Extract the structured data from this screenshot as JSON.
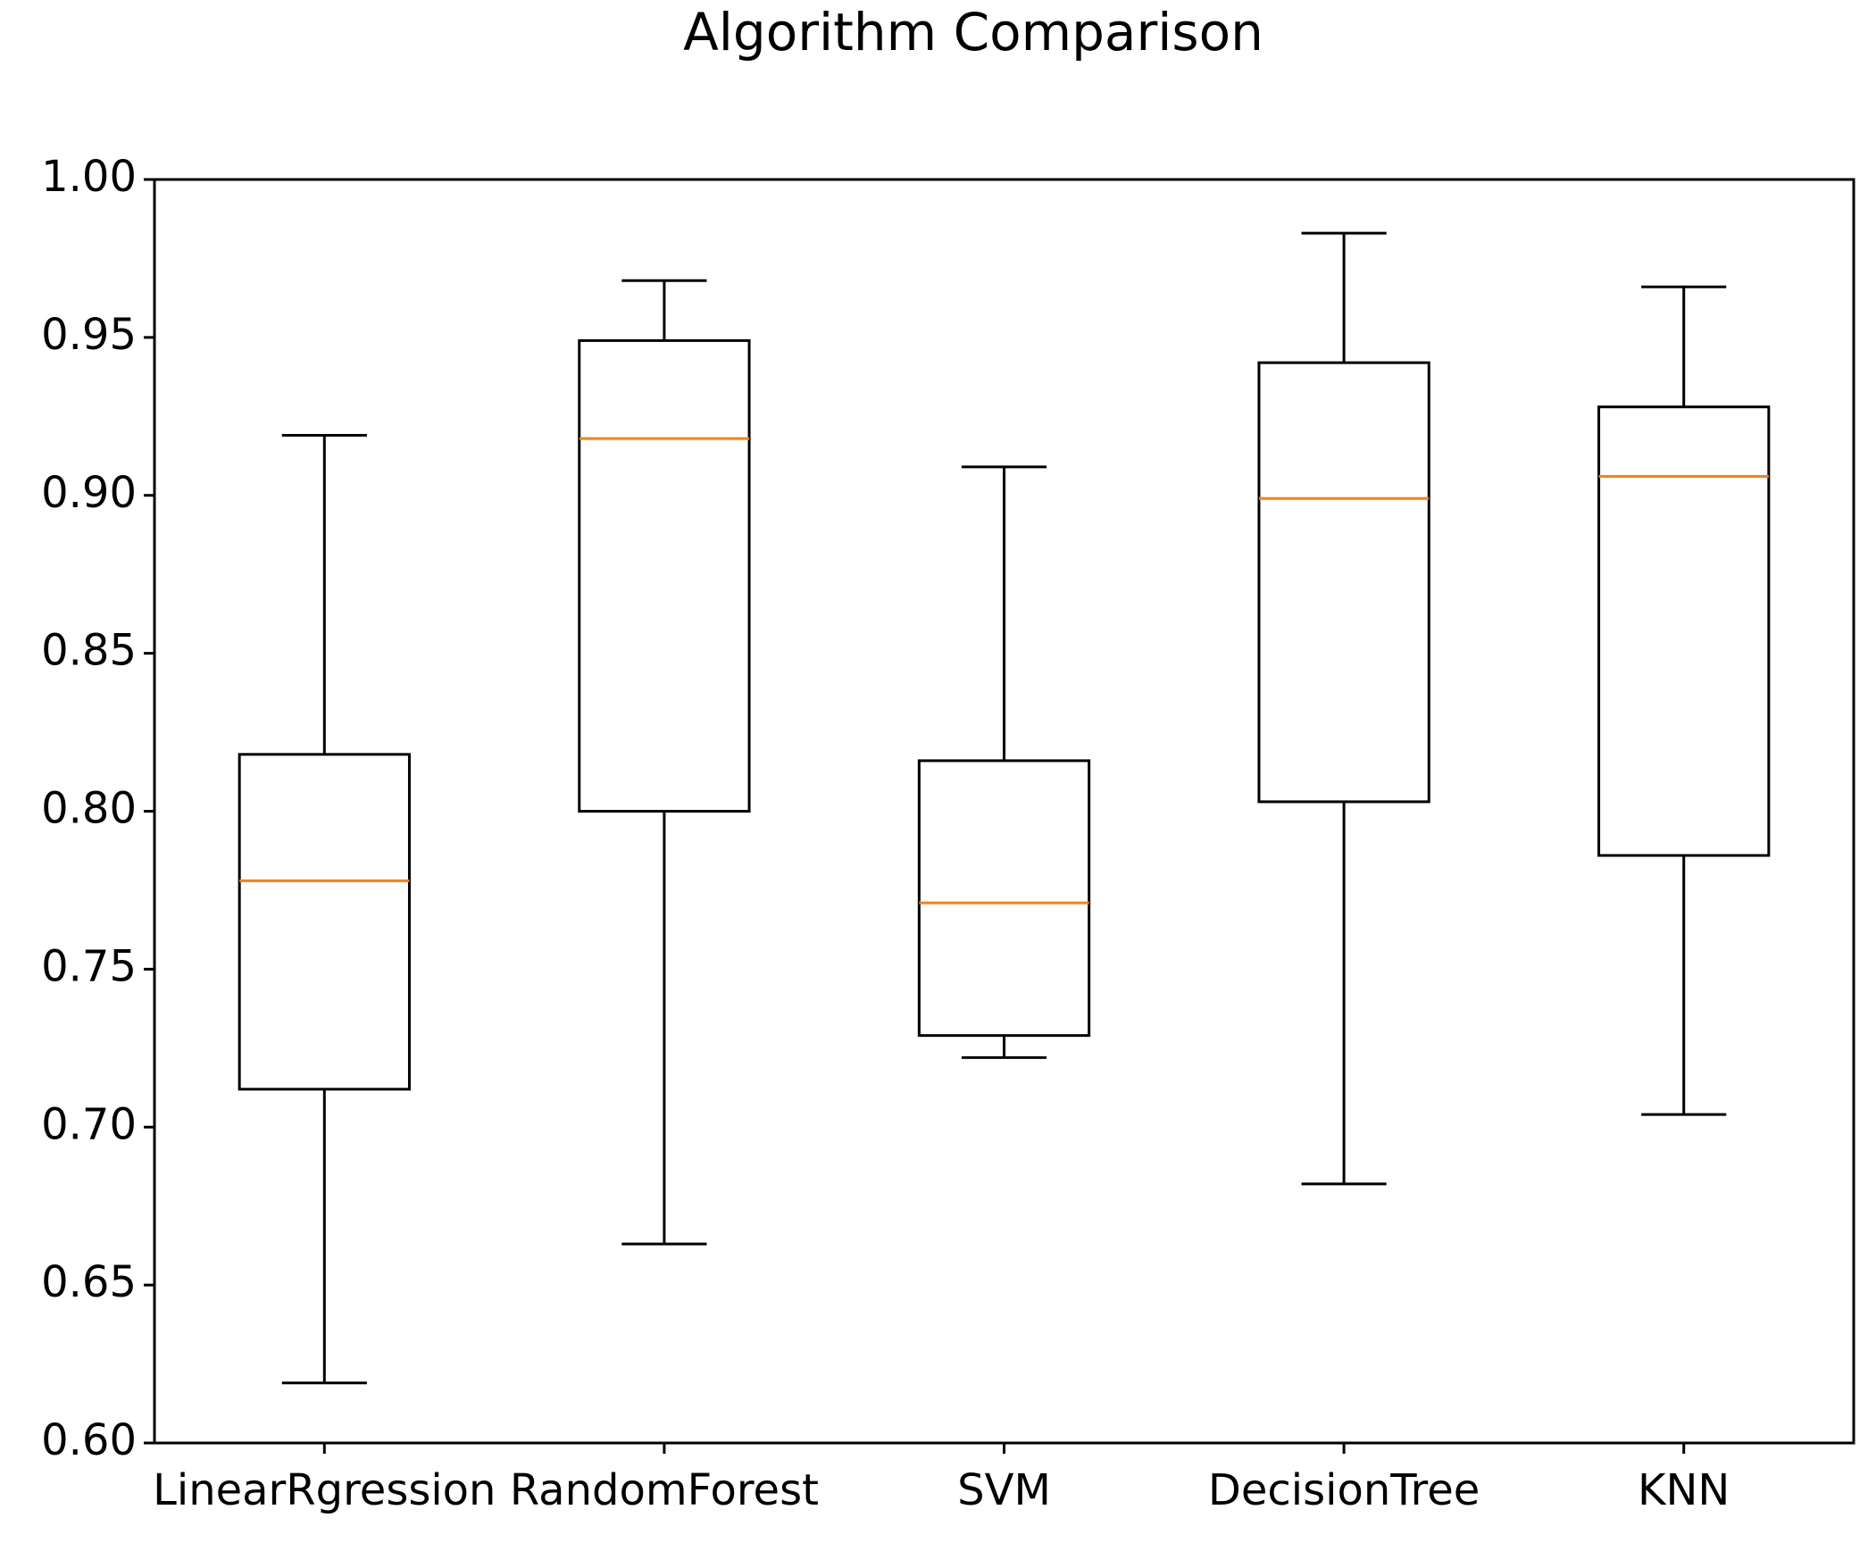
{
  "chart_data": {
    "type": "box",
    "title": "Algorithm Comparison",
    "categories": [
      "LinearRgression",
      "RandomForest",
      "SVM",
      "DecisionTree",
      "KNN"
    ],
    "boxes": [
      {
        "whislo": 0.619,
        "q1": 0.712,
        "med": 0.778,
        "q3": 0.818,
        "whishi": 0.919
      },
      {
        "whislo": 0.663,
        "q1": 0.8,
        "med": 0.918,
        "q3": 0.949,
        "whishi": 0.968
      },
      {
        "whislo": 0.722,
        "q1": 0.729,
        "med": 0.771,
        "q3": 0.816,
        "whishi": 0.909
      },
      {
        "whislo": 0.682,
        "q1": 0.803,
        "med": 0.899,
        "q3": 0.942,
        "whishi": 0.983
      },
      {
        "whislo": 0.704,
        "q1": 0.786,
        "med": 0.906,
        "q3": 0.928,
        "whishi": 0.966
      }
    ],
    "color": "#000000",
    "median_color": "#ff7f0e",
    "ylim": [
      0.6,
      1.0
    ],
    "yticks": [
      {
        "value": 0.6,
        "label": "0.60"
      },
      {
        "value": 0.65,
        "label": "0.65"
      },
      {
        "value": 0.7,
        "label": "0.70"
      },
      {
        "value": 0.75,
        "label": "0.75"
      },
      {
        "value": 0.8,
        "label": "0.80"
      },
      {
        "value": 0.85,
        "label": "0.85"
      },
      {
        "value": 0.9,
        "label": "0.90"
      },
      {
        "value": 0.95,
        "label": "0.95"
      },
      {
        "value": 1.0,
        "label": "1.00"
      }
    ],
    "grid": false
  }
}
